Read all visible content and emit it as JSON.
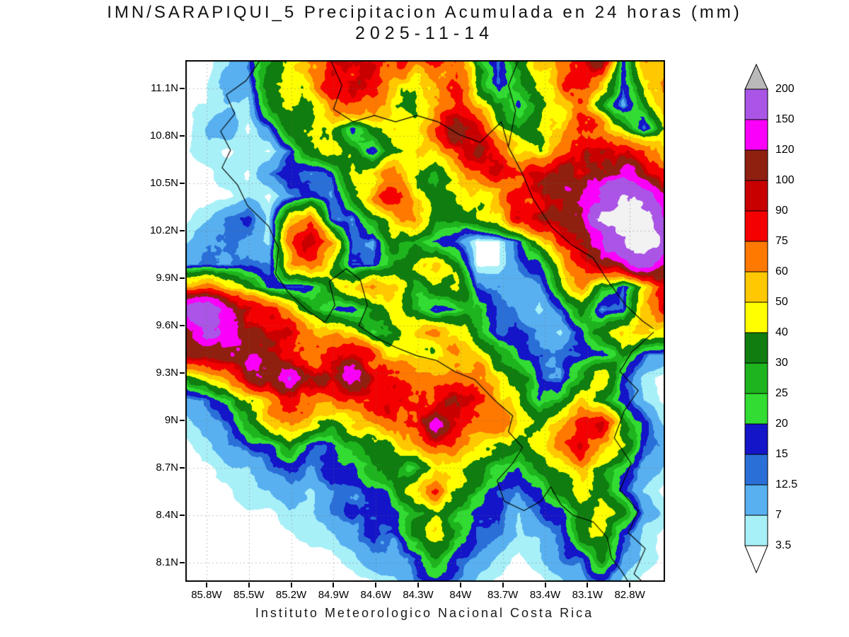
{
  "title": {
    "line1": "IMN/SARAPIQUI_5 Precipitacion Acumulada en 24 horas (mm)",
    "line2": "2025-11-14"
  },
  "footer": "Instituto Meteorologico Nacional Costa Rica",
  "axes": {
    "x": {
      "ticks": [
        {
          "label": "85.8W",
          "lon": 85.8
        },
        {
          "label": "85.5W",
          "lon": 85.5
        },
        {
          "label": "85.2W",
          "lon": 85.2
        },
        {
          "label": "84.9W",
          "lon": 84.9
        },
        {
          "label": "84.6W",
          "lon": 84.6
        },
        {
          "label": "84.3W",
          "lon": 84.3
        },
        {
          "label": "84W",
          "lon": 84.0
        },
        {
          "label": "83.7W",
          "lon": 83.7
        },
        {
          "label": "83.4W",
          "lon": 83.4
        },
        {
          "label": "83.1W",
          "lon": 83.1
        },
        {
          "label": "82.8W",
          "lon": 82.8
        }
      ]
    },
    "y": {
      "ticks": [
        {
          "label": "11.1N",
          "lat": 11.1
        },
        {
          "label": "10.8N",
          "lat": 10.8
        },
        {
          "label": "10.5N",
          "lat": 10.5
        },
        {
          "label": "10.2N",
          "lat": 10.2
        },
        {
          "label": "9.9N",
          "lat": 9.9
        },
        {
          "label": "9.6N",
          "lat": 9.6
        },
        {
          "label": "9.3N",
          "lat": 9.3
        },
        {
          "label": "9N",
          "lat": 9.0
        },
        {
          "label": "8.7N",
          "lat": 8.7
        },
        {
          "label": "8.4N",
          "lat": 8.4
        },
        {
          "label": "8.1N",
          "lat": 8.1
        }
      ]
    }
  },
  "chart_data": {
    "type": "heatmap",
    "title": "IMN/SARAPIQUI_5 Precipitacion Acumulada en 24 horas (mm)",
    "date": "2025-11-14",
    "units": "mm",
    "source": "Instituto Meteorologico Nacional Costa Rica",
    "lon_extent_w": [
      85.95,
      82.55
    ],
    "lat_extent": [
      7.98,
      11.28
    ],
    "levels": [
      3.5,
      7,
      12.5,
      15,
      20,
      25,
      30,
      40,
      50,
      60,
      75,
      90,
      100,
      120,
      150,
      200
    ],
    "colors": [
      "#FFFFFF",
      "#A8F0F8",
      "#58B0F0",
      "#2A6FD8",
      "#1414C8",
      "#32DC32",
      "#1EB41E",
      "#0F7D0F",
      "#FFFF00",
      "#FFC800",
      "#FF7800",
      "#F50000",
      "#C80000",
      "#8F2010",
      "#FA00FA",
      "#AA55E6",
      "#F2F2F2"
    ],
    "arrow_top_color": "#B9B9B9",
    "arrow_bottom_color": "#FFFFFF",
    "grid_rows": 24,
    "grid_cols": 24,
    "values_mm": [
      [
        2,
        2,
        5,
        10,
        27,
        45,
        67,
        82,
        95,
        82,
        67,
        67,
        82,
        82,
        27,
        13,
        34,
        55,
        45,
        67,
        82,
        13,
        55,
        45
      ],
      [
        2,
        3,
        8,
        10,
        34,
        34,
        45,
        82,
        95,
        82,
        55,
        45,
        67,
        82,
        34,
        13,
        27,
        45,
        55,
        67,
        45,
        13,
        34,
        55
      ],
      [
        2,
        3,
        5,
        5,
        27,
        34,
        34,
        55,
        67,
        55,
        34,
        27,
        45,
        67,
        45,
        27,
        17,
        27,
        45,
        55,
        34,
        10,
        27,
        45
      ],
      [
        2,
        5,
        10,
        2,
        10,
        27,
        34,
        34,
        13,
        27,
        34,
        34,
        55,
        82,
        67,
        34,
        27,
        34,
        45,
        82,
        67,
        45,
        13,
        34
      ],
      [
        2,
        5,
        2,
        5,
        2,
        10,
        27,
        34,
        27,
        13,
        27,
        34,
        45,
        67,
        82,
        67,
        45,
        34,
        67,
        82,
        95,
        82,
        67,
        45
      ],
      [
        2,
        2,
        5,
        2,
        10,
        13,
        10,
        13,
        34,
        45,
        55,
        34,
        27,
        45,
        67,
        82,
        67,
        82,
        95,
        95,
        82,
        95,
        82,
        67
      ],
      [
        2,
        2,
        2,
        5,
        2,
        10,
        13,
        10,
        27,
        55,
        67,
        45,
        27,
        34,
        45,
        55,
        67,
        82,
        95,
        110,
        135,
        170,
        135,
        95
      ],
      [
        2,
        5,
        10,
        13,
        5,
        45,
        55,
        13,
        10,
        27,
        45,
        55,
        34,
        27,
        34,
        45,
        67,
        82,
        82,
        95,
        170,
        210,
        170,
        135
      ],
      [
        5,
        10,
        13,
        10,
        5,
        55,
        67,
        45,
        13,
        10,
        34,
        27,
        17,
        13,
        2,
        2,
        13,
        34,
        67,
        82,
        135,
        170,
        210,
        135
      ],
      [
        10,
        13,
        10,
        13,
        13,
        45,
        55,
        34,
        13,
        13,
        27,
        34,
        45,
        27,
        2,
        2,
        10,
        13,
        34,
        67,
        82,
        95,
        135,
        110
      ],
      [
        55,
        67,
        45,
        27,
        13,
        10,
        13,
        27,
        45,
        67,
        45,
        27,
        34,
        45,
        13,
        10,
        5,
        10,
        27,
        55,
        27,
        13,
        45,
        67
      ],
      [
        135,
        170,
        110,
        82,
        67,
        45,
        27,
        17,
        13,
        34,
        45,
        27,
        13,
        17,
        27,
        13,
        10,
        5,
        13,
        27,
        10,
        13,
        55,
        82
      ],
      [
        95,
        135,
        135,
        95,
        82,
        82,
        67,
        55,
        45,
        27,
        34,
        45,
        55,
        45,
        27,
        13,
        13,
        10,
        5,
        13,
        27,
        45,
        55,
        45
      ],
      [
        82,
        95,
        110,
        135,
        95,
        82,
        67,
        82,
        95,
        67,
        55,
        45,
        45,
        55,
        45,
        27,
        17,
        13,
        10,
        13,
        13,
        27,
        13,
        10
      ],
      [
        27,
        45,
        67,
        82,
        95,
        135,
        110,
        95,
        135,
        82,
        67,
        55,
        55,
        67,
        55,
        34,
        27,
        13,
        10,
        27,
        45,
        13,
        5,
        2
      ],
      [
        10,
        13,
        27,
        45,
        67,
        82,
        82,
        67,
        67,
        82,
        82,
        67,
        82,
        95,
        67,
        45,
        27,
        17,
        27,
        45,
        27,
        13,
        5,
        2
      ],
      [
        5,
        10,
        13,
        27,
        45,
        55,
        45,
        34,
        45,
        55,
        67,
        82,
        135,
        82,
        67,
        55,
        34,
        27,
        45,
        67,
        82,
        27,
        13,
        5
      ],
      [
        2,
        5,
        10,
        13,
        13,
        27,
        13,
        13,
        27,
        34,
        45,
        55,
        67,
        55,
        45,
        34,
        27,
        34,
        55,
        82,
        45,
        34,
        13,
        10
      ],
      [
        2,
        2,
        5,
        5,
        10,
        13,
        10,
        13,
        13,
        27,
        34,
        27,
        45,
        34,
        27,
        17,
        13,
        27,
        34,
        45,
        27,
        17,
        10,
        5
      ],
      [
        2,
        2,
        2,
        5,
        5,
        10,
        5,
        10,
        13,
        17,
        27,
        45,
        67,
        45,
        27,
        13,
        10,
        13,
        27,
        34,
        27,
        13,
        5,
        2
      ],
      [
        1,
        2,
        1,
        2,
        2,
        5,
        5,
        10,
        13,
        13,
        17,
        27,
        34,
        27,
        17,
        13,
        5,
        10,
        13,
        27,
        34,
        27,
        10,
        5
      ],
      [
        1,
        1,
        1,
        1,
        1,
        2,
        5,
        5,
        10,
        13,
        13,
        34,
        45,
        27,
        13,
        10,
        5,
        5,
        10,
        27,
        34,
        13,
        5,
        2
      ],
      [
        1,
        1,
        1,
        1,
        1,
        1,
        1,
        2,
        5,
        10,
        10,
        13,
        27,
        13,
        10,
        5,
        2,
        5,
        10,
        13,
        27,
        10,
        5,
        2
      ],
      [
        1,
        1,
        1,
        1,
        1,
        1,
        1,
        1,
        1,
        2,
        5,
        10,
        13,
        10,
        5,
        2,
        1,
        2,
        5,
        10,
        13,
        5,
        2,
        1
      ]
    ],
    "coastlines": [
      [
        [
          85.42,
          11.28
        ],
        [
          85.52,
          11.15
        ],
        [
          85.66,
          11.06
        ],
        [
          85.6,
          10.94
        ],
        [
          85.7,
          10.83
        ],
        [
          85.63,
          10.71
        ],
        [
          85.69,
          10.6
        ],
        [
          85.58,
          10.49
        ],
        [
          85.51,
          10.36
        ],
        [
          85.36,
          10.23
        ],
        [
          85.29,
          10.09
        ],
        [
          85.31,
          9.93
        ],
        [
          85.22,
          9.81
        ],
        [
          85.09,
          9.7
        ],
        [
          84.96,
          9.62
        ],
        [
          84.89,
          9.73
        ],
        [
          84.93,
          9.88
        ],
        [
          84.81,
          9.96
        ],
        [
          84.71,
          9.89
        ],
        [
          84.66,
          9.73
        ],
        [
          84.72,
          9.6
        ],
        [
          84.59,
          9.52
        ],
        [
          84.45,
          9.46
        ],
        [
          84.31,
          9.41
        ],
        [
          84.17,
          9.38
        ],
        [
          84.04,
          9.31
        ],
        [
          83.9,
          9.26
        ],
        [
          83.76,
          9.13
        ],
        [
          83.63,
          9.03
        ],
        [
          83.66,
          8.93
        ],
        [
          83.56,
          8.83
        ],
        [
          83.63,
          8.73
        ],
        [
          83.74,
          8.62
        ],
        [
          83.69,
          8.49
        ],
        [
          83.55,
          8.43
        ],
        [
          83.43,
          8.49
        ],
        [
          83.36,
          8.58
        ],
        [
          83.29,
          8.47
        ],
        [
          83.2,
          8.4
        ],
        [
          83.06,
          8.36
        ],
        [
          82.96,
          8.26
        ],
        [
          82.93,
          8.13
        ],
        [
          82.86,
          8.05
        ],
        [
          82.81,
          7.98
        ]
      ],
      [
        [
          84.92,
          11.28
        ],
        [
          84.84,
          11.12
        ],
        [
          84.9,
          10.97
        ],
        [
          84.76,
          10.89
        ],
        [
          84.61,
          10.93
        ],
        [
          84.46,
          10.89
        ],
        [
          84.31,
          10.93
        ],
        [
          84.16,
          10.89
        ],
        [
          84.01,
          10.81
        ],
        [
          83.86,
          10.76
        ],
        [
          83.71,
          10.89
        ],
        [
          83.66,
          10.73
        ]
      ],
      [
        [
          83.59,
          11.28
        ],
        [
          83.66,
          11.12
        ],
        [
          83.61,
          10.96
        ],
        [
          83.66,
          10.73
        ],
        [
          83.56,
          10.56
        ],
        [
          83.49,
          10.41
        ],
        [
          83.36,
          10.23
        ],
        [
          83.21,
          10.11
        ],
        [
          83.06,
          10.03
        ],
        [
          82.96,
          9.89
        ],
        [
          82.83,
          9.73
        ],
        [
          82.71,
          9.63
        ],
        [
          82.63,
          9.58
        ]
      ],
      [
        [
          82.63,
          9.56
        ],
        [
          82.79,
          9.43
        ],
        [
          82.87,
          9.31
        ],
        [
          82.74,
          9.19
        ],
        [
          82.84,
          9.06
        ],
        [
          82.91,
          8.89
        ],
        [
          82.79,
          8.73
        ],
        [
          82.87,
          8.56
        ],
        [
          82.74,
          8.43
        ],
        [
          82.81,
          8.29
        ],
        [
          82.69,
          8.19
        ],
        [
          82.77,
          8.03
        ],
        [
          82.71,
          7.98
        ]
      ]
    ]
  }
}
